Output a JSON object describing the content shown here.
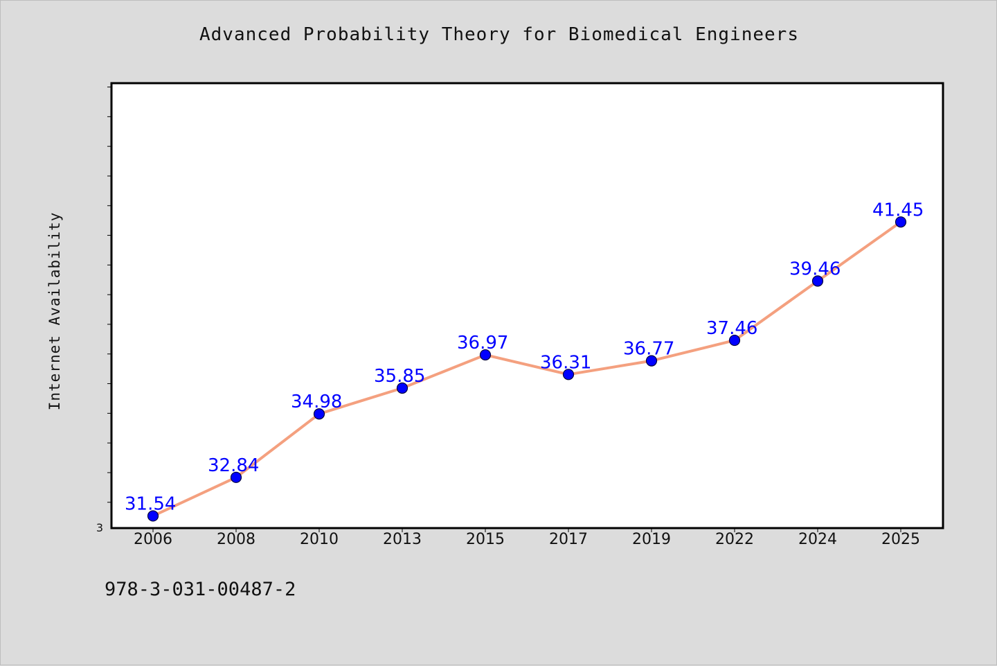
{
  "chart_data": {
    "type": "line",
    "title": "Advanced Probability Theory for Biomedical Engineers",
    "ylabel": "Internet Availability",
    "xlabel": "",
    "categories": [
      "2006",
      "2008",
      "2010",
      "2013",
      "2015",
      "2017",
      "2019",
      "2022",
      "2024",
      "2025"
    ],
    "series": [
      {
        "values": [
          31.54,
          32.84,
          34.98,
          35.85,
          36.97,
          36.31,
          36.77,
          37.46,
          39.46,
          41.45
        ]
      }
    ],
    "data_labels": [
      "31.54",
      "32.84",
      "34.98",
      "35.85",
      "36.97",
      "36.31",
      "36.77",
      "37.46",
      "39.46",
      "41.45"
    ],
    "ylim": [
      31.13,
      46.13
    ],
    "y_tick_step": 1,
    "y_tick_label_visible": "3",
    "grid": false,
    "legend": "none",
    "colors": {
      "line": "#f4a07f",
      "marker": "#0000ff",
      "label": "#0000ff",
      "plot_bg": "#ffffff",
      "page_bg": "#dcdcdc"
    }
  },
  "footer": {
    "code": "978-3-031-00487-2"
  }
}
